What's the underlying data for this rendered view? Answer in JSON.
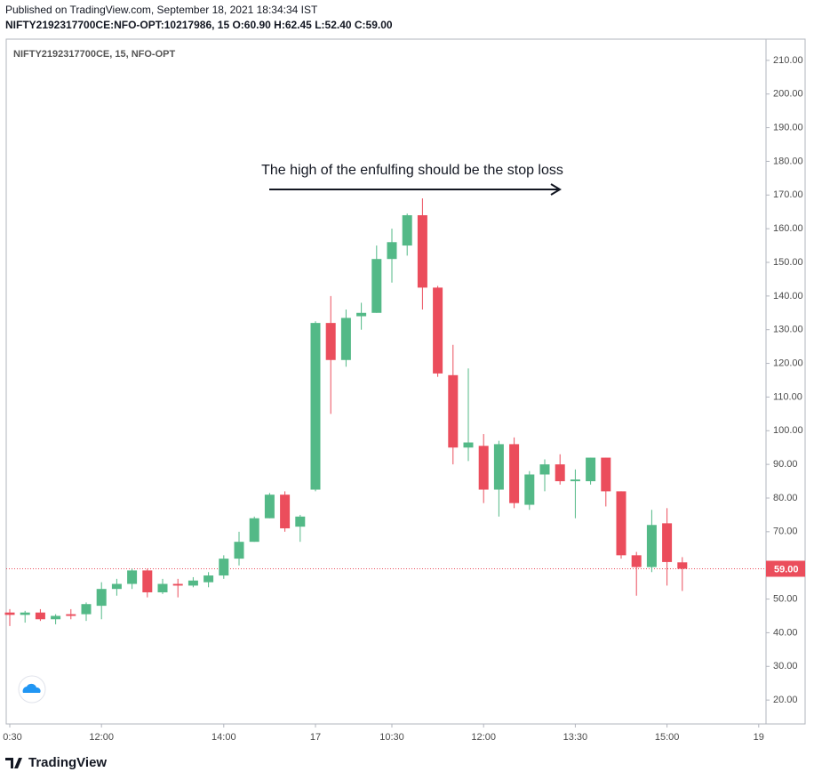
{
  "header": {
    "published": "Published on TradingView.com, September 18, 2021 18:34:34 IST",
    "symbol_line": "NIFTY2192317700CE:NFO-OPT:10217986, 15 O:60.90 H:62.45 L:52.40 C:59.00"
  },
  "footer": {
    "brand": "TradingView"
  },
  "chart_data": {
    "type": "candlestick",
    "title": "NIFTY2192317700CE, 15, NFO-OPT",
    "annotation": "The high of the enfulfing should be the stop loss",
    "up_color": "#53b987",
    "down_color": "#eb4d5c",
    "categories": [
      "0:30",
      null,
      null,
      null,
      null,
      null,
      "12:00",
      null,
      null,
      null,
      null,
      null,
      null,
      null,
      "14:00",
      null,
      null,
      null,
      null,
      null,
      "17",
      null,
      null,
      null,
      null,
      "10:30",
      null,
      null,
      null,
      null,
      null,
      "12:00",
      null,
      null,
      null,
      null,
      null,
      "13:30",
      null,
      null,
      null,
      null,
      null,
      "15:00",
      null,
      null,
      null,
      null,
      null,
      "19"
    ],
    "open": [
      46,
      45.3,
      46,
      44,
      45.5,
      45.5,
      48,
      53,
      54.5,
      58.5,
      52,
      54.5,
      54,
      55,
      57,
      62,
      67,
      74,
      81,
      71.5,
      82.5,
      132,
      121,
      134,
      135,
      151,
      155,
      164,
      142.5,
      116.5,
      95,
      95.5,
      82.5,
      96,
      78,
      87,
      90,
      85,
      85,
      92,
      82,
      63,
      59.5,
      72.5,
      60.9,
      null,
      null,
      null,
      null,
      null
    ],
    "high": [
      47,
      46.5,
      47,
      45.5,
      47,
      49,
      55,
      56,
      59,
      59,
      56,
      56,
      56.5,
      58,
      63,
      70,
      74.5,
      81.5,
      82,
      75,
      132.5,
      140,
      136,
      138,
      155,
      160,
      164.5,
      169,
      143,
      125.5,
      118.5,
      99,
      97,
      98,
      88,
      91.5,
      93,
      88.5,
      92,
      92,
      82,
      64,
      76.5,
      77,
      62.45,
      null,
      null,
      null,
      null,
      null
    ],
    "low": [
      42,
      43,
      43.5,
      42.5,
      44,
      43.5,
      44,
      51,
      53,
      50.5,
      51.5,
      50.5,
      53.5,
      53.5,
      56,
      60,
      67,
      74,
      70,
      67,
      82,
      105,
      119,
      130,
      135,
      144,
      152,
      136,
      116,
      90,
      91,
      78.5,
      74.5,
      77,
      76.5,
      82,
      84,
      74,
      84,
      77.5,
      62,
      51,
      58,
      54,
      52.4,
      null,
      null,
      null,
      null,
      null
    ],
    "close": [
      45.3,
      46,
      44,
      45,
      45,
      48.5,
      53,
      54.5,
      58.5,
      52,
      54.5,
      54,
      55.5,
      57,
      62,
      67,
      74,
      81,
      71,
      74.5,
      132,
      121,
      133.5,
      135,
      151,
      156,
      164,
      142.5,
      117,
      95,
      96.5,
      82.5,
      96,
      78.5,
      87,
      90,
      85,
      85.5,
      92,
      82,
      63,
      59.5,
      72,
      61,
      59,
      null,
      null,
      null,
      null,
      null
    ],
    "price_line": {
      "value": 59,
      "label": "59.00"
    },
    "ylim": [
      12.9,
      216.3
    ],
    "yticks": [
      {
        "value": 20,
        "label": "20.00"
      },
      {
        "value": 30,
        "label": "30.00"
      },
      {
        "value": 40,
        "label": "40.00"
      },
      {
        "value": 50,
        "label": "50.00"
      },
      {
        "value": 60,
        "label": "60.00"
      },
      {
        "value": 70,
        "label": "70.00"
      },
      {
        "value": 80,
        "label": "80.00"
      },
      {
        "value": 90,
        "label": "90.00"
      },
      {
        "value": 100,
        "label": "100.00"
      },
      {
        "value": 110,
        "label": "110.00"
      },
      {
        "value": 120,
        "label": "120.00"
      },
      {
        "value": 130,
        "label": "130.00"
      },
      {
        "value": 140,
        "label": "140.00"
      },
      {
        "value": 150,
        "label": "150.00"
      },
      {
        "value": 160,
        "label": "160.00"
      },
      {
        "value": 170,
        "label": "170.00"
      },
      {
        "value": 180,
        "label": "180.00"
      },
      {
        "value": 190,
        "label": "190.00"
      },
      {
        "value": 200,
        "label": "200.00"
      },
      {
        "value": 210,
        "label": "210.00"
      }
    ],
    "grid": false
  }
}
